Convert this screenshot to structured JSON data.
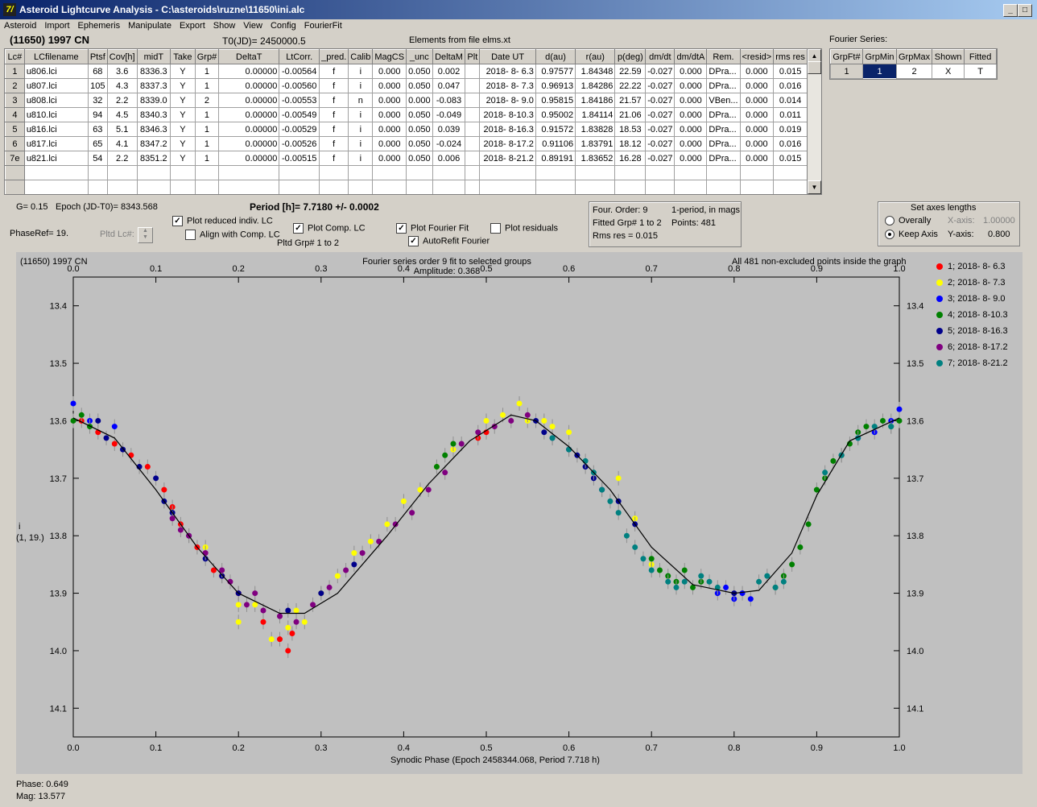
{
  "window": {
    "title": "Asteroid Lightcurve Analysis - C:\\asteroids\\ruzne\\11650\\ini.alc",
    "icon_text": "7/"
  },
  "menu": [
    "Asteroid",
    "Import",
    "Ephemeris",
    "Manipulate",
    "Export",
    "Show",
    "View",
    "Config",
    "FourierFit"
  ],
  "header": {
    "asteroid": "(11650) 1997 CN",
    "t0": "T0(JD)= 2450000.5",
    "elements": "Elements from file elms.xt"
  },
  "table": {
    "columns": [
      "Lc#",
      "LCfilename",
      "Ptsf",
      "Cov[h]",
      "midT",
      "Take",
      "Grp#",
      "DeltaT",
      "LtCorr.",
      "_pred.",
      "Calib",
      "MagCS",
      "_unc",
      "DeltaM",
      "Plt",
      "Date UT",
      "d(au)",
      "r(au)",
      "p(deg)",
      "dm/dt",
      "dm/dtA",
      "Rem.",
      "<resid>",
      "rms res"
    ],
    "rows": [
      [
        "1",
        "u806.lci",
        "68",
        "3.6",
        "8336.3",
        "Y",
        "1",
        "0.00000",
        "-0.00564",
        "f",
        "i",
        "0.000",
        "0.050",
        "0.002",
        "",
        "2018- 8- 6.3",
        "0.97577",
        "1.84348",
        "22.59",
        "-0.027",
        "0.000",
        "DPra...",
        "0.000",
        "0.015"
      ],
      [
        "2",
        "u807.lci",
        "105",
        "4.3",
        "8337.3",
        "Y",
        "1",
        "0.00000",
        "-0.00560",
        "f",
        "i",
        "0.000",
        "0.050",
        "0.047",
        "",
        "2018- 8- 7.3",
        "0.96913",
        "1.84286",
        "22.22",
        "-0.027",
        "0.000",
        "DPra...",
        "0.000",
        "0.016"
      ],
      [
        "3",
        "u808.lci",
        "32",
        "2.2",
        "8339.0",
        "Y",
        "2",
        "0.00000",
        "-0.00553",
        "f",
        "n",
        "0.000",
        "0.000",
        "-0.083",
        "",
        "2018- 8- 9.0",
        "0.95815",
        "1.84186",
        "21.57",
        "-0.027",
        "0.000",
        "VBen...",
        "0.000",
        "0.014"
      ],
      [
        "4",
        "u810.lci",
        "94",
        "4.5",
        "8340.3",
        "Y",
        "1",
        "0.00000",
        "-0.00549",
        "f",
        "i",
        "0.000",
        "0.050",
        "-0.049",
        "",
        "2018- 8-10.3",
        "0.95002",
        "1.84114",
        "21.06",
        "-0.027",
        "0.000",
        "DPra...",
        "0.000",
        "0.011"
      ],
      [
        "5",
        "u816.lci",
        "63",
        "5.1",
        "8346.3",
        "Y",
        "1",
        "0.00000",
        "-0.00529",
        "f",
        "i",
        "0.000",
        "0.050",
        "0.039",
        "",
        "2018- 8-16.3",
        "0.91572",
        "1.83828",
        "18.53",
        "-0.027",
        "0.000",
        "DPra...",
        "0.000",
        "0.019"
      ],
      [
        "6",
        "u817.lci",
        "65",
        "4.1",
        "8347.2",
        "Y",
        "1",
        "0.00000",
        "-0.00526",
        "f",
        "i",
        "0.000",
        "0.050",
        "-0.024",
        "",
        "2018- 8-17.2",
        "0.91106",
        "1.83791",
        "18.12",
        "-0.027",
        "0.000",
        "DPra...",
        "0.000",
        "0.016"
      ],
      [
        "7e",
        "u821.lci",
        "54",
        "2.2",
        "8351.2",
        "Y",
        "1",
        "0.00000",
        "-0.00515",
        "f",
        "i",
        "0.000",
        "0.050",
        "0.006",
        "",
        "2018- 8-21.2",
        "0.89191",
        "1.83652",
        "16.28",
        "-0.027",
        "0.000",
        "DPra...",
        "0.000",
        "0.015"
      ]
    ]
  },
  "fourier_series": {
    "label": "Fourier Series:",
    "columns": [
      "GrpFt#",
      "GrpMin",
      "GrpMax",
      "Shown",
      "Fitted"
    ],
    "row": [
      "1",
      "1",
      "2",
      "X",
      "T"
    ]
  },
  "params": {
    "g": "G= 0.15",
    "epoch": "Epoch (JD-T0)= 8343.568",
    "period": "Period [h]= 7.7180 +/- 0.0002",
    "phaseref": "PhaseRef= 19.",
    "pltd_lc": "Pltd Lc#:",
    "plot_reduced": "Plot reduced indiv. LC",
    "align": "Align with Comp. LC",
    "plot_comp": "Plot Comp. LC",
    "pltd_grp": "Pltd Grp#  1   to   2",
    "plot_fourier": "Plot Fourier Fit",
    "autorefit": "AutoRefit Fourier",
    "plot_residuals": "Plot residuals"
  },
  "fit_info": {
    "order": "Four. Order:  9",
    "period_mode": "1-period, in mags",
    "fitted": "Fitted Grp# 1 to 2",
    "points": "Points: 481",
    "rms": "Rms res     = 0.015"
  },
  "axes_box": {
    "title": "Set axes lengths",
    "overally": "Overally",
    "keep": "Keep Axis",
    "xaxis_label": "X-axis:",
    "xaxis_value": "1.00000",
    "yaxis_label": "Y-axis:",
    "yaxis_value": "0.800"
  },
  "graph": {
    "object": "(11650) 1997 CN",
    "title1": "Fourier series order 9 fit to selected groups",
    "title2": "Amplitude: 0.368",
    "note": "All 481 non-excluded points inside the graph",
    "ylabel1": "i",
    "ylabel2": "(1, 19.)",
    "xlabel": "Synodic Phase (Epoch 2458344.068, Period 7.718 h)"
  },
  "chart_data": {
    "type": "scatter",
    "x_range": [
      0.0,
      1.0
    ],
    "y_range": [
      13.35,
      14.15
    ],
    "y_inverted": true,
    "x_ticks": [
      "0.0",
      "0.1",
      "0.2",
      "0.3",
      "0.4",
      "0.5",
      "0.6",
      "0.7",
      "0.8",
      "0.9",
      "1.0"
    ],
    "y_ticks": [
      "13.4",
      "13.5",
      "13.6",
      "13.7",
      "13.8",
      "13.9",
      "14.0",
      "14.1"
    ],
    "fit_points": [
      [
        0.0,
        13.595
      ],
      [
        0.05,
        13.63
      ],
      [
        0.1,
        13.72
      ],
      [
        0.15,
        13.82
      ],
      [
        0.2,
        13.9
      ],
      [
        0.25,
        13.935
      ],
      [
        0.28,
        13.935
      ],
      [
        0.32,
        13.9
      ],
      [
        0.38,
        13.8
      ],
      [
        0.43,
        13.71
      ],
      [
        0.48,
        13.635
      ],
      [
        0.53,
        13.59
      ],
      [
        0.56,
        13.6
      ],
      [
        0.6,
        13.645
      ],
      [
        0.65,
        13.72
      ],
      [
        0.7,
        13.82
      ],
      [
        0.75,
        13.885
      ],
      [
        0.8,
        13.9
      ],
      [
        0.83,
        13.895
      ],
      [
        0.87,
        13.83
      ],
      [
        0.9,
        13.73
      ],
      [
        0.94,
        13.635
      ],
      [
        1.0,
        13.595
      ]
    ],
    "series": [
      {
        "name": "1; 2018- 8- 6.3",
        "color": "#ff0000",
        "points": [
          [
            0.01,
            13.6
          ],
          [
            0.03,
            13.62
          ],
          [
            0.05,
            13.64
          ],
          [
            0.07,
            13.66
          ],
          [
            0.09,
            13.68
          ],
          [
            0.11,
            13.72
          ],
          [
            0.13,
            13.78
          ],
          [
            0.15,
            13.82
          ],
          [
            0.17,
            13.86
          ],
          [
            0.2,
            13.9
          ],
          [
            0.23,
            13.95
          ],
          [
            0.25,
            13.98
          ],
          [
            0.26,
            14.0
          ],
          [
            0.265,
            13.97
          ],
          [
            0.49,
            13.63
          ],
          [
            0.5,
            13.62
          ],
          [
            0.12,
            13.75
          ],
          [
            0.18,
            13.87
          ]
        ]
      },
      {
        "name": "2; 2018- 8- 7.3",
        "color": "#ffff00",
        "points": [
          [
            0.2,
            13.95
          ],
          [
            0.22,
            13.92
          ],
          [
            0.24,
            13.98
          ],
          [
            0.26,
            13.96
          ],
          [
            0.28,
            13.95
          ],
          [
            0.3,
            13.9
          ],
          [
            0.32,
            13.87
          ],
          [
            0.34,
            13.83
          ],
          [
            0.36,
            13.81
          ],
          [
            0.38,
            13.78
          ],
          [
            0.4,
            13.74
          ],
          [
            0.42,
            13.72
          ],
          [
            0.44,
            13.68
          ],
          [
            0.46,
            13.65
          ],
          [
            0.5,
            13.6
          ],
          [
            0.52,
            13.59
          ],
          [
            0.54,
            13.57
          ],
          [
            0.55,
            13.6
          ],
          [
            0.57,
            13.6
          ],
          [
            0.58,
            13.61
          ],
          [
            0.6,
            13.62
          ],
          [
            0.66,
            13.7
          ],
          [
            0.68,
            13.77
          ],
          [
            0.7,
            13.85
          ],
          [
            0.16,
            13.82
          ],
          [
            0.2,
            13.92
          ],
          [
            0.27,
            13.93
          ]
        ]
      },
      {
        "name": "3; 2018- 8- 9.0",
        "color": "#0000ff",
        "points": [
          [
            0.0,
            13.57
          ],
          [
            0.02,
            13.6
          ],
          [
            0.05,
            13.61
          ],
          [
            0.78,
            13.9
          ],
          [
            0.79,
            13.89
          ],
          [
            0.8,
            13.91
          ],
          [
            0.81,
            13.9
          ],
          [
            0.82,
            13.91
          ],
          [
            0.93,
            13.66
          ],
          [
            0.95,
            13.63
          ],
          [
            0.97,
            13.62
          ],
          [
            0.99,
            13.6
          ],
          [
            1.0,
            13.58
          ]
        ]
      },
      {
        "name": "4; 2018- 8-10.3",
        "color": "#008000",
        "points": [
          [
            0.0,
            13.6
          ],
          [
            0.01,
            13.59
          ],
          [
            0.02,
            13.61
          ],
          [
            0.44,
            13.68
          ],
          [
            0.45,
            13.66
          ],
          [
            0.46,
            13.64
          ],
          [
            0.7,
            13.84
          ],
          [
            0.71,
            13.86
          ],
          [
            0.72,
            13.87
          ],
          [
            0.73,
            13.88
          ],
          [
            0.74,
            13.86
          ],
          [
            0.75,
            13.89
          ],
          [
            0.76,
            13.88
          ],
          [
            0.85,
            13.89
          ],
          [
            0.86,
            13.87
          ],
          [
            0.87,
            13.85
          ],
          [
            0.88,
            13.82
          ],
          [
            0.89,
            13.78
          ],
          [
            0.9,
            13.72
          ],
          [
            0.91,
            13.7
          ],
          [
            0.92,
            13.67
          ],
          [
            0.93,
            13.66
          ],
          [
            0.94,
            13.64
          ],
          [
            0.95,
            13.62
          ],
          [
            0.96,
            13.61
          ],
          [
            0.98,
            13.6
          ],
          [
            0.99,
            13.61
          ],
          [
            1.0,
            13.6
          ]
        ]
      },
      {
        "name": "5; 2018- 8-16.3",
        "color": "#00008b",
        "points": [
          [
            0.03,
            13.6
          ],
          [
            0.04,
            13.63
          ],
          [
            0.06,
            13.65
          ],
          [
            0.08,
            13.68
          ],
          [
            0.1,
            13.7
          ],
          [
            0.11,
            13.74
          ],
          [
            0.12,
            13.76
          ],
          [
            0.14,
            13.8
          ],
          [
            0.16,
            13.84
          ],
          [
            0.18,
            13.87
          ],
          [
            0.2,
            13.9
          ],
          [
            0.26,
            13.93
          ],
          [
            0.3,
            13.9
          ],
          [
            0.34,
            13.85
          ],
          [
            0.56,
            13.6
          ],
          [
            0.57,
            13.62
          ],
          [
            0.58,
            13.63
          ],
          [
            0.6,
            13.65
          ],
          [
            0.61,
            13.66
          ],
          [
            0.62,
            13.68
          ],
          [
            0.63,
            13.7
          ],
          [
            0.64,
            13.72
          ],
          [
            0.66,
            13.74
          ],
          [
            0.68,
            13.78
          ],
          [
            0.8,
            13.9
          ]
        ]
      },
      {
        "name": "6; 2018- 8-17.2",
        "color": "#800080",
        "points": [
          [
            0.12,
            13.77
          ],
          [
            0.14,
            13.8
          ],
          [
            0.16,
            13.83
          ],
          [
            0.18,
            13.86
          ],
          [
            0.19,
            13.88
          ],
          [
            0.21,
            13.92
          ],
          [
            0.23,
            13.93
          ],
          [
            0.25,
            13.94
          ],
          [
            0.27,
            13.95
          ],
          [
            0.29,
            13.92
          ],
          [
            0.31,
            13.89
          ],
          [
            0.33,
            13.86
          ],
          [
            0.35,
            13.83
          ],
          [
            0.37,
            13.81
          ],
          [
            0.39,
            13.78
          ],
          [
            0.41,
            13.76
          ],
          [
            0.43,
            13.72
          ],
          [
            0.45,
            13.69
          ],
          [
            0.47,
            13.64
          ],
          [
            0.49,
            13.62
          ],
          [
            0.51,
            13.61
          ],
          [
            0.53,
            13.6
          ],
          [
            0.55,
            13.59
          ],
          [
            0.13,
            13.79
          ],
          [
            0.22,
            13.9
          ]
        ]
      },
      {
        "name": "7; 2018- 8-21.2",
        "color": "#008080",
        "points": [
          [
            0.58,
            13.63
          ],
          [
            0.6,
            13.65
          ],
          [
            0.62,
            13.67
          ],
          [
            0.63,
            13.69
          ],
          [
            0.64,
            13.72
          ],
          [
            0.65,
            13.74
          ],
          [
            0.66,
            13.76
          ],
          [
            0.67,
            13.8
          ],
          [
            0.68,
            13.82
          ],
          [
            0.69,
            13.84
          ],
          [
            0.7,
            13.86
          ],
          [
            0.72,
            13.88
          ],
          [
            0.73,
            13.89
          ],
          [
            0.74,
            13.88
          ],
          [
            0.76,
            13.87
          ],
          [
            0.77,
            13.88
          ],
          [
            0.78,
            13.89
          ],
          [
            0.83,
            13.88
          ],
          [
            0.84,
            13.87
          ],
          [
            0.85,
            13.89
          ],
          [
            0.86,
            13.88
          ],
          [
            0.91,
            13.69
          ],
          [
            0.93,
            13.66
          ],
          [
            0.95,
            13.63
          ],
          [
            0.97,
            13.61
          ],
          [
            0.99,
            13.61
          ]
        ]
      }
    ]
  },
  "status": {
    "phase": "Phase:  0.649",
    "mag": "Mag:    13.577"
  }
}
